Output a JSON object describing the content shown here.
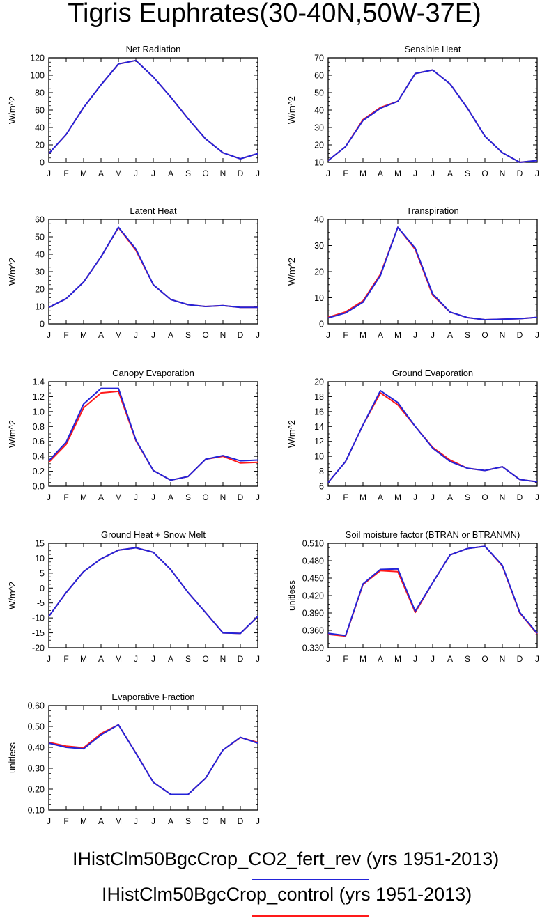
{
  "title": "Tigris Euphrates(30-40N,50W-37E)",
  "colors": {
    "rev": "#2323d9",
    "control": "#ff1a1a"
  },
  "legend": [
    {
      "name": "IHistClm50BgcCrop_CO2_fert_rev (yrs 1951-2013)",
      "color": "#2323d9"
    },
    {
      "name": "IHistClm50BgcCrop_control (yrs 1951-2013)",
      "color": "#ff1a1a"
    }
  ],
  "chart_data": [
    {
      "type": "line",
      "title": "Net Radiation",
      "ylabel": "W/m^2",
      "categories": [
        "J",
        "F",
        "M",
        "A",
        "M",
        "J",
        "J",
        "A",
        "S",
        "O",
        "N",
        "D",
        "J"
      ],
      "ylim": [
        0,
        120
      ],
      "yticks": [
        "0",
        "20",
        "40",
        "60",
        "80",
        "100",
        "120"
      ],
      "series": [
        {
          "values": [
            10,
            32,
            63,
            89,
            113,
            117,
            98,
            75,
            50,
            27,
            11,
            4,
            10
          ]
        },
        {
          "values": [
            10,
            32,
            63,
            89,
            113,
            117,
            98,
            75,
            50,
            27,
            11,
            4,
            10
          ]
        }
      ]
    },
    {
      "type": "line",
      "title": "Sensible Heat",
      "ylabel": "W/m^2",
      "categories": [
        "J",
        "F",
        "M",
        "A",
        "M",
        "J",
        "J",
        "A",
        "S",
        "O",
        "N",
        "D",
        "J"
      ],
      "ylim": [
        10,
        70
      ],
      "yticks": [
        "10",
        "20",
        "30",
        "40",
        "50",
        "60",
        "70"
      ],
      "series": [
        {
          "values": [
            11,
            19,
            34,
            41,
            45,
            61,
            63,
            55,
            41,
            25,
            15.5,
            10,
            11
          ]
        },
        {
          "values": [
            11,
            19,
            34.5,
            41.5,
            45,
            61,
            63,
            55,
            41,
            25,
            15.5,
            10,
            11
          ]
        }
      ]
    },
    {
      "type": "line",
      "title": "Latent Heat",
      "ylabel": "W/m^2",
      "categories": [
        "J",
        "F",
        "M",
        "A",
        "M",
        "J",
        "J",
        "A",
        "S",
        "O",
        "N",
        "D",
        "J"
      ],
      "ylim": [
        0,
        60
      ],
      "yticks": [
        "0",
        "10",
        "20",
        "30",
        "40",
        "50",
        "60"
      ],
      "series": [
        {
          "values": [
            9.5,
            14.5,
            24,
            38.5,
            55.5,
            43,
            22.5,
            14,
            11,
            10,
            10.5,
            9.5,
            9.5
          ]
        },
        {
          "values": [
            9.5,
            14.5,
            24,
            38.5,
            55.3,
            42.3,
            22.5,
            14,
            11,
            10,
            10.5,
            9.5,
            9.5
          ]
        }
      ]
    },
    {
      "type": "line",
      "title": "Transpiration",
      "ylabel": "W/m^2",
      "categories": [
        "J",
        "F",
        "M",
        "A",
        "M",
        "J",
        "J",
        "A",
        "S",
        "O",
        "N",
        "D",
        "J"
      ],
      "ylim": [
        0,
        40
      ],
      "yticks": [
        "0",
        "10",
        "20",
        "30",
        "40"
      ],
      "series": [
        {
          "values": [
            2.3,
            4.2,
            8.3,
            18.5,
            37,
            29,
            11.5,
            4.5,
            2.4,
            1.6,
            1.8,
            2,
            2.5
          ]
        },
        {
          "values": [
            2.5,
            4.6,
            8.8,
            19,
            37,
            28.5,
            11,
            4.5,
            2.4,
            1.6,
            1.8,
            2,
            2.5
          ]
        }
      ]
    },
    {
      "type": "line",
      "title": "Canopy Evaporation",
      "ylabel": "W/m^2",
      "categories": [
        "J",
        "F",
        "M",
        "A",
        "M",
        "J",
        "J",
        "A",
        "S",
        "O",
        "N",
        "D",
        "J"
      ],
      "ylim": [
        0,
        1.4
      ],
      "yticks": [
        "0.0",
        "0.2",
        "0.4",
        "0.6",
        "0.8",
        "1.0",
        "1.2",
        "1.4"
      ],
      "series": [
        {
          "values": [
            0.34,
            0.59,
            1.1,
            1.31,
            1.31,
            0.62,
            0.21,
            0.08,
            0.13,
            0.36,
            0.41,
            0.34,
            0.35
          ]
        },
        {
          "values": [
            0.32,
            0.56,
            1.05,
            1.25,
            1.27,
            0.61,
            0.21,
            0.08,
            0.13,
            0.36,
            0.4,
            0.31,
            0.32
          ]
        }
      ]
    },
    {
      "type": "line",
      "title": "Ground Evaporation",
      "ylabel": "W/m^2",
      "categories": [
        "J",
        "F",
        "M",
        "A",
        "M",
        "J",
        "J",
        "A",
        "S",
        "O",
        "N",
        "D",
        "J"
      ],
      "ylim": [
        6,
        20
      ],
      "yticks": [
        "6",
        "8",
        "10",
        "12",
        "14",
        "16",
        "18",
        "20"
      ],
      "series": [
        {
          "values": [
            6.5,
            9.3,
            14.2,
            18.8,
            17.2,
            14,
            11.1,
            9.3,
            8.4,
            8.1,
            8.6,
            6.9,
            6.6
          ]
        },
        {
          "values": [
            6.5,
            9.3,
            14.2,
            18.5,
            16.9,
            14,
            11.2,
            9.5,
            8.4,
            8.1,
            8.6,
            6.9,
            6.6
          ]
        }
      ]
    },
    {
      "type": "line",
      "title": "Ground Heat + Snow Melt",
      "ylabel": "W/m^2",
      "categories": [
        "J",
        "F",
        "M",
        "A",
        "M",
        "J",
        "J",
        "A",
        "S",
        "O",
        "N",
        "D",
        "J"
      ],
      "ylim": [
        -20,
        15
      ],
      "yticks": [
        "-20",
        "-15",
        "-10",
        "-5",
        "0",
        "5",
        "10",
        "15"
      ],
      "series": [
        {
          "values": [
            -9.5,
            -1.5,
            5.5,
            9.8,
            12.7,
            13.5,
            12,
            6.2,
            -1.5,
            -8.2,
            -15,
            -15.2,
            -9.5
          ]
        },
        {
          "values": [
            -9.5,
            -1.5,
            5.5,
            9.8,
            12.7,
            13.5,
            12,
            6.2,
            -1.5,
            -8.2,
            -15,
            -15.2,
            -9.5
          ]
        }
      ]
    },
    {
      "type": "line",
      "title": "Soil moisture factor (BTRAN or BTRANMN)",
      "ylabel": "unitless",
      "categories": [
        "J",
        "F",
        "M",
        "A",
        "M",
        "J",
        "J",
        "A",
        "S",
        "O",
        "N",
        "D",
        "J"
      ],
      "ylim": [
        0.33,
        0.51
      ],
      "yticks": [
        "0.330",
        "0.360",
        "0.390",
        "0.420",
        "0.450",
        "0.480",
        "0.510"
      ],
      "series": [
        {
          "values": [
            0.355,
            0.351,
            0.44,
            0.465,
            0.466,
            0.393,
            0.442,
            0.49,
            0.501,
            0.505,
            0.472,
            0.391,
            0.355
          ]
        },
        {
          "values": [
            0.353,
            0.35,
            0.439,
            0.463,
            0.461,
            0.391,
            0.442,
            0.49,
            0.501,
            0.505,
            0.471,
            0.39,
            0.354
          ]
        }
      ]
    },
    {
      "type": "line",
      "title": "Evaporative Fraction",
      "ylabel": "unitless",
      "categories": [
        "J",
        "F",
        "M",
        "A",
        "M",
        "J",
        "J",
        "A",
        "S",
        "O",
        "N",
        "D",
        "J"
      ],
      "ylim": [
        0.1,
        0.6
      ],
      "yticks": [
        "0.10",
        "0.20",
        "0.30",
        "0.40",
        "0.50",
        "0.60"
      ],
      "series": [
        {
          "values": [
            0.42,
            0.4,
            0.393,
            0.46,
            0.508,
            0.372,
            0.233,
            0.175,
            0.175,
            0.252,
            0.387,
            0.448,
            0.42
          ]
        },
        {
          "values": [
            0.424,
            0.406,
            0.398,
            0.466,
            0.508,
            0.373,
            0.233,
            0.175,
            0.175,
            0.252,
            0.387,
            0.447,
            0.424
          ]
        }
      ]
    }
  ]
}
